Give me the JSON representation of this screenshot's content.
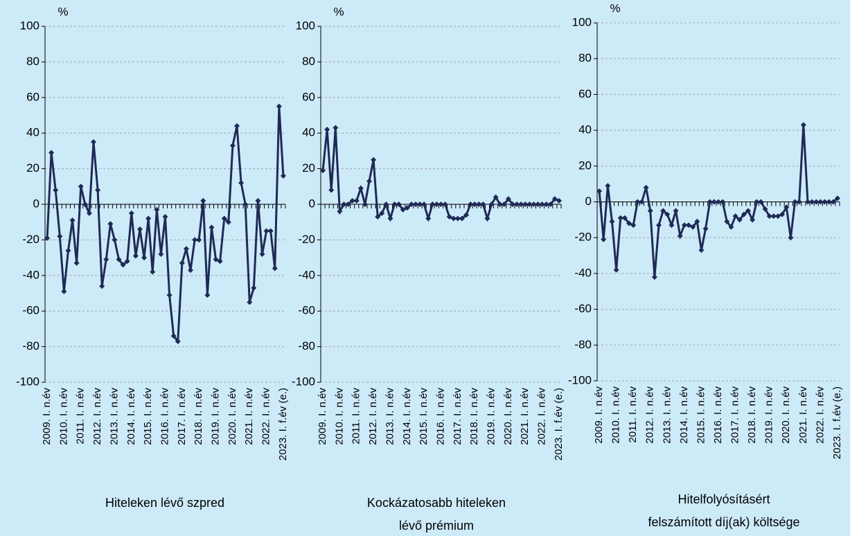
{
  "chart_data": [
    {
      "type": "line",
      "title": [
        "Hiteleken lévő szpred"
      ],
      "unit": "%",
      "categories": [
        "2009. I. n.év",
        null,
        null,
        null,
        "2010. I. n.év",
        null,
        null,
        null,
        "2011. I. n.év",
        null,
        null,
        null,
        "2012. I. n.év",
        null,
        null,
        null,
        "2013. I. n.év",
        null,
        null,
        null,
        "2014. I. n.év",
        null,
        null,
        null,
        "2015. I. n.év",
        null,
        null,
        null,
        "2016. I. n.év",
        null,
        null,
        null,
        "2017. I. n.év",
        null,
        null,
        null,
        "2018. I. n.év",
        null,
        null,
        null,
        "2019. I. n.év",
        null,
        null,
        null,
        "2020. I. n.év",
        null,
        null,
        null,
        "2021. I. n.év",
        null,
        null,
        null,
        "2022. I. n.év",
        null,
        null,
        null,
        "2023. I. f.év (e.)"
      ],
      "series": [
        {
          "color": "#1f2a55",
          "values": [
            -19,
            29,
            8,
            -18,
            -49,
            -26,
            -9,
            -33,
            10,
            0,
            -5,
            35,
            8,
            -46,
            -31,
            -11,
            -20,
            -31,
            -34,
            -32,
            -5,
            -29,
            -14,
            -30,
            -8,
            -38,
            -3,
            -28,
            -7,
            -51,
            -74,
            -77,
            -33,
            -25,
            -37,
            -20,
            -20,
            2,
            -51,
            -13,
            -31,
            -32,
            -8,
            -10,
            33,
            44,
            12,
            0,
            -55,
            -47,
            2,
            -28,
            -15,
            -15,
            -36,
            55,
            16
          ]
        }
      ],
      "ylim": [
        -100,
        100
      ],
      "yticks": [
        -100,
        -80,
        -60,
        -40,
        -20,
        0,
        20,
        40,
        60,
        80,
        100
      ],
      "grid": true
    },
    {
      "type": "line",
      "title": [
        "Kockázatosabb hiteleken",
        "lévő prémium"
      ],
      "unit": "%",
      "categories": [
        "2009. I. n.év",
        null,
        null,
        null,
        "2010. I. n.év",
        null,
        null,
        null,
        "2011. I. n.év",
        null,
        null,
        null,
        "2012. I. n.év",
        null,
        null,
        null,
        "2013. I. n.év",
        null,
        null,
        null,
        "2014. I. n.év",
        null,
        null,
        null,
        "2015. I. n.év",
        null,
        null,
        null,
        "2016. I. n.év",
        null,
        null,
        null,
        "2017. I. n.év",
        null,
        null,
        null,
        "2018. I. n.év",
        null,
        null,
        null,
        "2019. I. n.év",
        null,
        null,
        null,
        "2020. I. n.év",
        null,
        null,
        null,
        "2021. I. n.év",
        null,
        null,
        null,
        "2022. I. n.év",
        null,
        null,
        null,
        "2023. I. f.év (e.)"
      ],
      "series": [
        {
          "color": "#1f2a55",
          "values": [
            19,
            42,
            8,
            43,
            -4,
            0,
            0,
            2,
            2,
            9,
            0,
            13,
            25,
            -7,
            -5,
            0,
            -8,
            0,
            0,
            -3,
            -2,
            0,
            0,
            0,
            0,
            -8,
            0,
            0,
            0,
            0,
            -7,
            -8,
            -8,
            -8,
            -6,
            0,
            0,
            0,
            0,
            -8,
            0,
            4,
            0,
            0,
            3,
            0,
            0,
            0,
            0,
            0,
            0,
            0,
            0,
            0,
            0,
            3,
            2
          ]
        }
      ],
      "ylim": [
        -100,
        100
      ],
      "yticks": [
        -100,
        -80,
        -60,
        -40,
        -20,
        0,
        20,
        40,
        60,
        80,
        100
      ],
      "grid": true
    },
    {
      "type": "line",
      "title": [
        "Hitelfolyósításért",
        "felszámított díj(ak) költsége"
      ],
      "unit": "%",
      "categories": [
        "2009. I. n.év",
        null,
        null,
        null,
        "2010. I. n.év",
        null,
        null,
        null,
        "2011. I. n.év",
        null,
        null,
        null,
        "2012. I. n.év",
        null,
        null,
        null,
        "2013. I. n.év",
        null,
        null,
        null,
        "2014. I. n.év",
        null,
        null,
        null,
        "2015. I. n.év",
        null,
        null,
        null,
        "2016. I. n.év",
        null,
        null,
        null,
        "2017. I. n.év",
        null,
        null,
        null,
        "2018. I. n.év",
        null,
        null,
        null,
        "2019. I. n.év",
        null,
        null,
        null,
        "2020. I. n.év",
        null,
        null,
        null,
        "2021. I. n.év",
        null,
        null,
        null,
        "2022. I. n.év",
        null,
        null,
        null,
        "2023. I. f.év (e.)"
      ],
      "series": [
        {
          "color": "#1f2a55",
          "values": [
            6,
            -21,
            9,
            -11,
            -38,
            -9,
            -9,
            -12,
            -13,
            0,
            0,
            8,
            -5,
            -42,
            -13,
            -5,
            -7,
            -13,
            -5,
            -19,
            -13,
            -13,
            -14,
            -11,
            -27,
            -15,
            0,
            0,
            0,
            0,
            -11,
            -14,
            -8,
            -10,
            -7,
            -5,
            -10,
            0,
            0,
            -4,
            -8,
            -8,
            -8,
            -7,
            -3,
            -20,
            0,
            0,
            43,
            0,
            0,
            0,
            0,
            0,
            0,
            0,
            2
          ]
        }
      ],
      "ylim": [
        -100,
        100
      ],
      "yticks": [
        -100,
        -80,
        -60,
        -40,
        -20,
        0,
        20,
        40,
        60,
        80,
        100
      ],
      "grid": true
    }
  ]
}
